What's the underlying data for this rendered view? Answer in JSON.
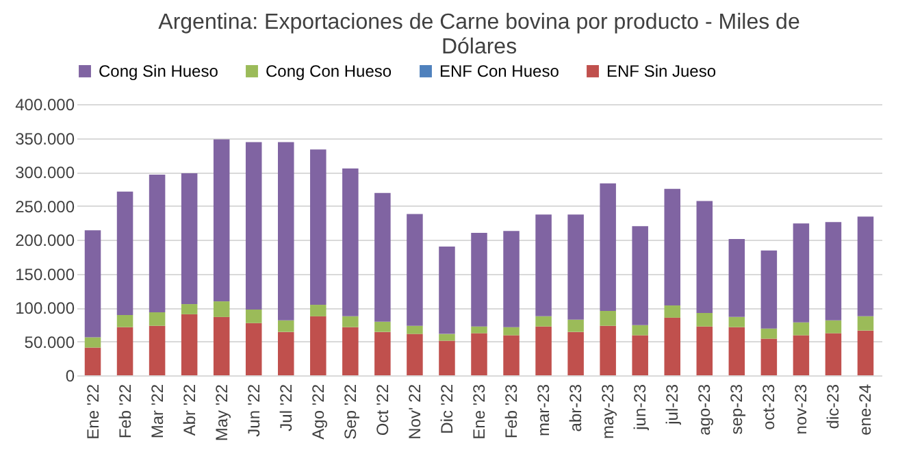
{
  "chart_data": {
    "type": "bar",
    "stacked": true,
    "title": "Argentina: Exportaciones de Carne bovina por producto - Miles de\nDólares",
    "categories": [
      "Ene '22",
      "Feb '22",
      "Mar '22",
      "Abr '22",
      "May '22",
      "Jun '22",
      "Jul '22",
      "Ago '22",
      "Sep '22",
      "Oct '22",
      "Nov' 22",
      "Dic '22",
      "Ene '23",
      "Feb '23",
      "mar-23",
      "abr-23",
      "may-23",
      "jun-23",
      "jul-23",
      "ago-23",
      "sep-23",
      "oct-23",
      "nov-23",
      "dic-23",
      "ene-24"
    ],
    "series": [
      {
        "name": "ENF Sin Jueso",
        "color": "#c0504d",
        "values": [
          41000,
          71000,
          73000,
          90000,
          86000,
          77000,
          64000,
          87000,
          71000,
          64000,
          61000,
          51000,
          62000,
          59000,
          72000,
          64000,
          73000,
          59000,
          85000,
          72000,
          71000,
          54000,
          59000,
          62000,
          66000
        ]
      },
      {
        "name": "ENF Con Hueso",
        "color": "#4f81bd",
        "values": [
          0,
          0,
          0,
          0,
          0,
          0,
          0,
          0,
          0,
          0,
          0,
          0,
          0,
          0,
          0,
          0,
          0,
          0,
          0,
          0,
          0,
          0,
          0,
          0,
          0
        ]
      },
      {
        "name": "Cong Con Hueso",
        "color": "#9bbb59",
        "values": [
          15000,
          18000,
          20000,
          15000,
          23000,
          20000,
          17000,
          17000,
          16000,
          15000,
          12000,
          10000,
          10000,
          12000,
          15000,
          18000,
          22000,
          15000,
          18000,
          20000,
          15000,
          15000,
          19000,
          19000,
          21000
        ]
      },
      {
        "name": "Cong Sin Hueso",
        "color": "#8064a2",
        "values": [
          158000,
          182000,
          203000,
          193000,
          239000,
          247000,
          263000,
          229000,
          218000,
          190000,
          165000,
          129000,
          138000,
          142000,
          150000,
          155000,
          188000,
          146000,
          172000,
          165000,
          115000,
          115000,
          146000,
          145000,
          147000
        ]
      }
    ],
    "ylim": [
      0,
      400000
    ],
    "yticks": [
      {
        "value": 0,
        "label": "0"
      },
      {
        "value": 50000,
        "label": "50.000"
      },
      {
        "value": 100000,
        "label": "100.000"
      },
      {
        "value": 150000,
        "label": "150.000"
      },
      {
        "value": 200000,
        "label": "200.000"
      },
      {
        "value": 250000,
        "label": "250.000"
      },
      {
        "value": 300000,
        "label": "300.000"
      },
      {
        "value": 350000,
        "label": "350.000"
      },
      {
        "value": 400000,
        "label": "400.000"
      }
    ],
    "grid": "y",
    "legend": "top"
  }
}
